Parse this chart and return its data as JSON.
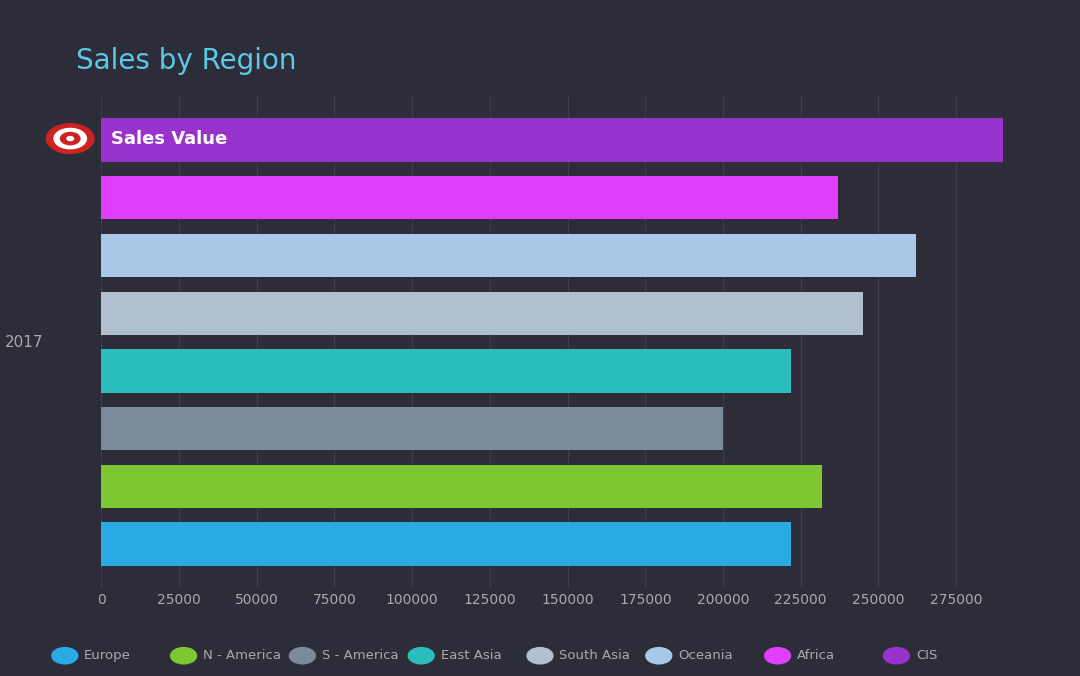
{
  "title": "Sales by Region",
  "title_color": "#5bc8e8",
  "background_color": "#2d2d3a",
  "plot_bg_color": "#2d2d3a",
  "grid_color": "#3d3d4d",
  "tick_color": "#aaaaaa",
  "year_label": "2017",
  "year_label_color": "#aaaaaa",
  "legend_label": "Sales Value",
  "legend_label_color": "#ffffff",
  "categories": [
    "Europe",
    "N - America",
    "S - America",
    "East Asia",
    "South Asia",
    "Oceania",
    "Africa",
    "CIS"
  ],
  "values": [
    222000,
    232000,
    200000,
    222000,
    245000,
    262000,
    237000,
    290000
  ],
  "bar_colors": [
    "#29aae3",
    "#7dc832",
    "#7b8b9a",
    "#2bbcbc",
    "#b0c0cc",
    "#a8c8e8",
    "#e040fb",
    "#9932cc"
  ],
  "xlim": [
    0,
    310000
  ],
  "xticks": [
    0,
    25000,
    50000,
    75000,
    100000,
    125000,
    150000,
    175000,
    200000,
    225000,
    250000,
    275000
  ],
  "bar_height": 0.75,
  "figsize": [
    10.8,
    6.76
  ],
  "dpi": 100
}
